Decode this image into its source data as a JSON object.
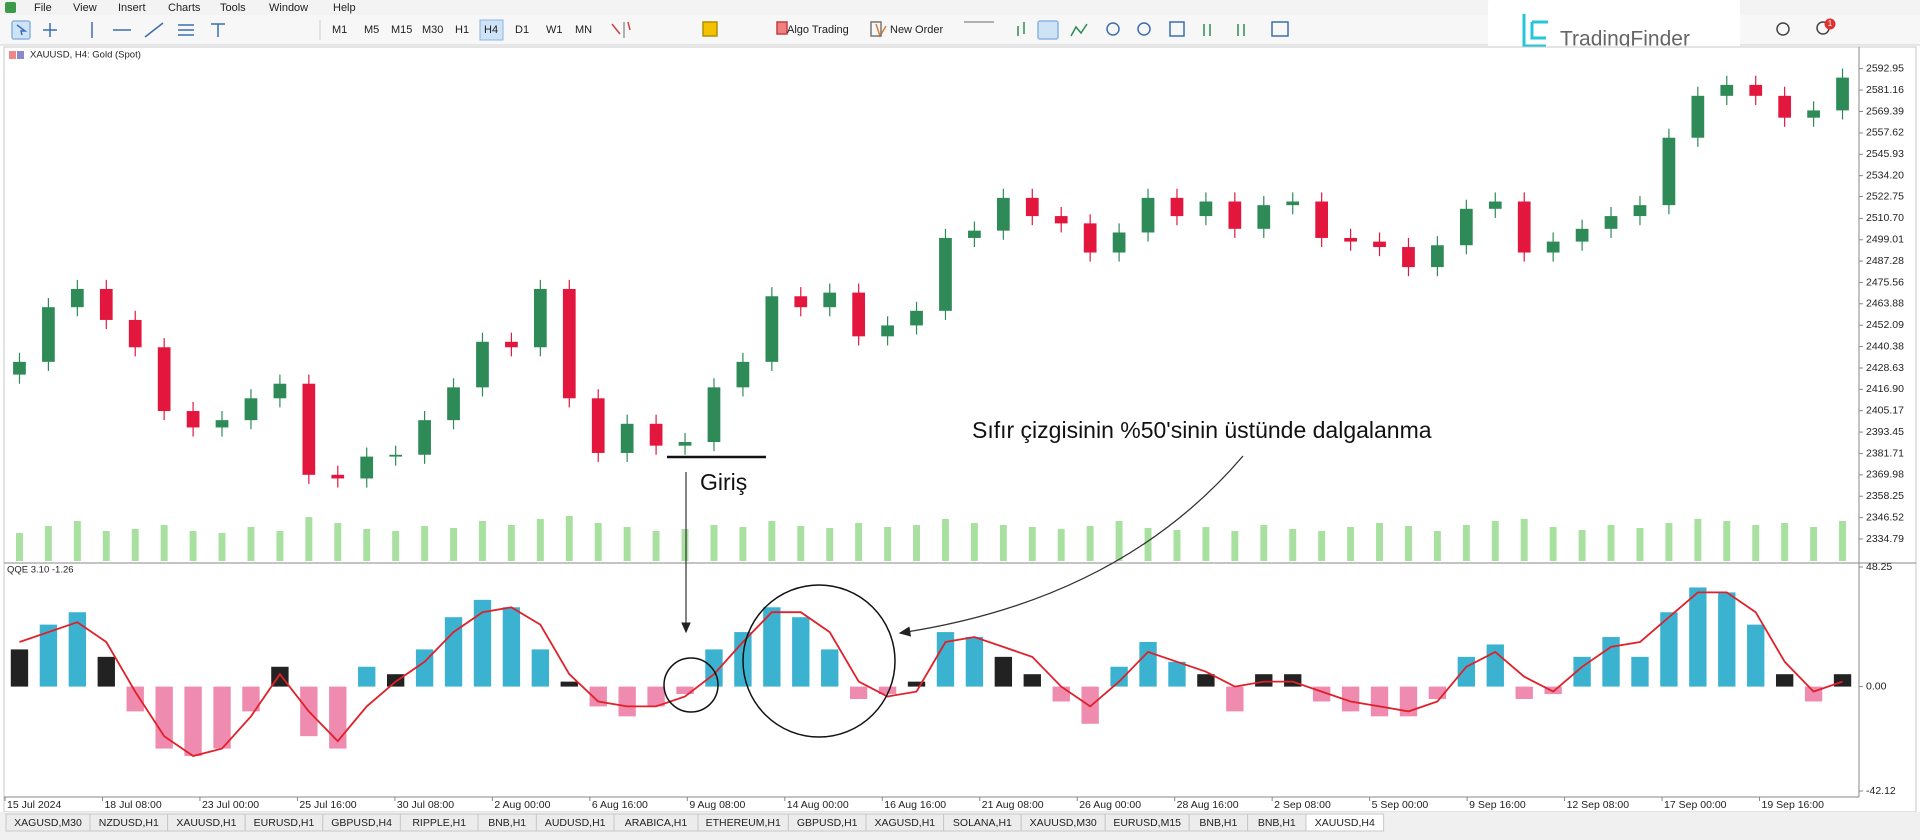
{
  "menu": [
    "File",
    "View",
    "Insert",
    "Charts",
    "Tools",
    "Window",
    "Help"
  ],
  "toolbar": {
    "timeframes": [
      "M1",
      "M5",
      "M15",
      "M30",
      "H1",
      "H4",
      "D1",
      "W1",
      "MN"
    ],
    "algo_trading": "Algo Trading",
    "new_order": "New Order"
  },
  "logo": "TradingFinder",
  "badge": 1,
  "chart_data": {
    "type": "candlestick",
    "title": "XAUUSD, H4: Gold (Spot)",
    "up_color": "#2e8b57",
    "down_color": "#e3173e",
    "open": [
      2425,
      2432,
      2462,
      2472,
      2455,
      2440,
      2405,
      2396,
      2400,
      2412,
      2420,
      2370,
      2368,
      2380,
      2381,
      2400,
      2418,
      2443,
      2440,
      2472,
      2412,
      2382,
      2398,
      2386,
      2388,
      2418,
      2432,
      2468,
      2462,
      2470,
      2446,
      2452,
      2460,
      2500,
      2504,
      2522,
      2512,
      2508,
      2492,
      2503,
      2522,
      2512,
      2520,
      2505,
      2518,
      2520,
      2500,
      2498,
      2495,
      2484,
      2496,
      2516,
      2520,
      2492,
      2498,
      2505,
      2512,
      2518,
      2555,
      2578,
      2584,
      2578,
      2566,
      2570
    ],
    "high": [
      2437,
      2467,
      2477,
      2477,
      2460,
      2445,
      2410,
      2405,
      2417,
      2425,
      2425,
      2375,
      2385,
      2386,
      2405,
      2423,
      2448,
      2448,
      2477,
      2477,
      2417,
      2403,
      2403,
      2393,
      2423,
      2437,
      2473,
      2473,
      2475,
      2475,
      2457,
      2465,
      2505,
      2509,
      2527,
      2527,
      2517,
      2513,
      2508,
      2527,
      2527,
      2525,
      2525,
      2523,
      2525,
      2525,
      2505,
      2503,
      2500,
      2501,
      2521,
      2525,
      2525,
      2503,
      2510,
      2517,
      2523,
      2560,
      2583,
      2589,
      2589,
      2583,
      2575,
      2593
    ],
    "low": [
      2420,
      2427,
      2457,
      2450,
      2435,
      2400,
      2391,
      2391,
      2395,
      2407,
      2365,
      2363,
      2363,
      2375,
      2376,
      2395,
      2413,
      2435,
      2435,
      2407,
      2377,
      2377,
      2381,
      2381,
      2383,
      2413,
      2427,
      2457,
      2457,
      2441,
      2441,
      2447,
      2455,
      2495,
      2499,
      2507,
      2503,
      2487,
      2487,
      2498,
      2507,
      2507,
      2500,
      2500,
      2513,
      2495,
      2493,
      2490,
      2479,
      2479,
      2491,
      2511,
      2487,
      2487,
      2493,
      2500,
      2507,
      2513,
      2550,
      2573,
      2573,
      2561,
      2561,
      2565
    ],
    "close": [
      2432,
      2462,
      2472,
      2455,
      2440,
      2405,
      2396,
      2400,
      2412,
      2420,
      2370,
      2368,
      2380,
      2381,
      2400,
      2418,
      2443,
      2440,
      2472,
      2412,
      2382,
      2398,
      2386,
      2388,
      2418,
      2432,
      2468,
      2462,
      2470,
      2446,
      2452,
      2460,
      2500,
      2504,
      2522,
      2512,
      2508,
      2492,
      2503,
      2522,
      2512,
      2520,
      2505,
      2518,
      2520,
      2500,
      2498,
      2495,
      2484,
      2496,
      2516,
      2520,
      2492,
      2498,
      2505,
      2512,
      2518,
      2555,
      2578,
      2584,
      2578,
      2566,
      2570,
      2588
    ],
    "ylim": [
      2322.7,
      2603.7
    ],
    "yticks": [
      2592.95,
      2581.16,
      2569.39,
      2557.62,
      2545.93,
      {
        "value": 2534.2,
        "label": "2534.20"
      },
      2522.75,
      {
        "value": 2510.7,
        "label": "2510.70"
      },
      2499.01,
      2487.28,
      2475.56,
      2463.88,
      2452.09,
      2440.38,
      2428.63,
      {
        "value": 2416.9,
        "label": "2416.90"
      },
      2405.17,
      2393.45,
      2381.71,
      2369.98,
      2358.25,
      2346.52,
      2334.79
    ],
    "xtick_labels": [
      "15 Jul 2024",
      "18 Jul 08:00",
      "23 Jul 00:00",
      "25 Jul 16:00",
      "30 Jul 08:00",
      "2 Aug 00:00",
      "6 Aug 16:00",
      "9 Aug 08:00",
      "14 Aug 00:00",
      "16 Aug 16:00",
      "21 Aug 08:00",
      "26 Aug 00:00",
      "28 Aug 16:00",
      "2 Sep 08:00",
      "5 Sep 00:00",
      "9 Sep 16:00",
      "12 Sep 08:00",
      "17 Sep 00:00",
      "19 Sep 16:00"
    ],
    "volume": {
      "color": "#a8e0a0",
      "values": [
        28,
        35,
        40,
        30,
        32,
        36,
        30,
        28,
        34,
        30,
        44,
        38,
        32,
        30,
        35,
        33,
        40,
        36,
        42,
        45,
        38,
        34,
        30,
        32,
        36,
        34,
        40,
        35,
        33,
        38,
        34,
        36,
        42,
        38,
        36,
        34,
        32,
        35,
        40,
        33,
        31,
        34,
        30,
        36,
        32,
        30,
        34,
        38,
        35,
        30,
        36,
        40,
        42,
        34,
        31,
        36,
        33,
        38,
        42,
        40,
        36,
        38,
        34,
        40
      ]
    },
    "indicator": {
      "title": "QQE 3.10 -1.26",
      "ylim": [
        -42.12,
        48.25
      ],
      "yticks": [
        48.25,
        {
          "value": 0,
          "label": "0.00"
        },
        -42.12
      ],
      "histogram": {
        "values": [
          15,
          25,
          30,
          12,
          -10,
          -25,
          -28,
          -25,
          -10,
          8,
          -20,
          -25,
          8,
          5,
          15,
          28,
          35,
          32,
          15,
          2,
          -8,
          -12,
          -8,
          -3,
          15,
          22,
          32,
          28,
          15,
          -5,
          -3,
          2,
          22,
          20,
          12,
          5,
          -6,
          -15,
          8,
          18,
          10,
          5,
          -10,
          5,
          5,
          -6,
          -10,
          -12,
          -12,
          -5,
          12,
          17,
          -5,
          -3,
          12,
          20,
          12,
          30,
          40,
          38,
          25,
          5,
          -6,
          5
        ],
        "colors": [
          "#222222",
          "#3bb3d0",
          "#3bb3d0",
          "#222222",
          "#f08bb0",
          "#f08bb0",
          "#f08bb0",
          "#f08bb0",
          "#f08bb0",
          "#222222",
          "#f08bb0",
          "#f08bb0",
          "#3bb3d0",
          "#222222",
          "#3bb3d0",
          "#3bb3d0",
          "#3bb3d0",
          "#3bb3d0",
          "#3bb3d0",
          "#222222",
          "#f08bb0",
          "#f08bb0",
          "#f08bb0",
          "#f08bb0",
          "#3bb3d0",
          "#3bb3d0",
          "#3bb3d0",
          "#3bb3d0",
          "#3bb3d0",
          "#f08bb0",
          "#f08bb0",
          "#222222",
          "#3bb3d0",
          "#3bb3d0",
          "#222222",
          "#222222",
          "#f08bb0",
          "#f08bb0",
          "#3bb3d0",
          "#3bb3d0",
          "#3bb3d0",
          "#222222",
          "#f08bb0",
          "#222222",
          "#222222",
          "#f08bb0",
          "#f08bb0",
          "#f08bb0",
          "#f08bb0",
          "#f08bb0",
          "#3bb3d0",
          "#3bb3d0",
          "#f08bb0",
          "#f08bb0",
          "#3bb3d0",
          "#3bb3d0",
          "#3bb3d0",
          "#3bb3d0",
          "#3bb3d0",
          "#3bb3d0",
          "#3bb3d0",
          "#222222",
          "#f08bb0",
          "#222222"
        ]
      },
      "line": {
        "color": "#e0202a",
        "values": [
          18,
          22,
          26,
          18,
          -2,
          -20,
          -28,
          -25,
          -12,
          5,
          -10,
          -22,
          -8,
          2,
          10,
          22,
          30,
          32,
          25,
          5,
          -6,
          -8,
          -8,
          -4,
          5,
          18,
          30,
          30,
          22,
          2,
          -4,
          -2,
          18,
          20,
          16,
          12,
          0,
          -8,
          2,
          14,
          10,
          6,
          0,
          2,
          2,
          -2,
          -6,
          -8,
          -10,
          -6,
          8,
          14,
          4,
          -2,
          8,
          16,
          18,
          28,
          38,
          38,
          30,
          10,
          -2,
          2
        ]
      }
    }
  },
  "annotations": {
    "wave": "Sıfır çizgisinin %50'sinin üstünde dalgalanma",
    "entry": "Giriş"
  },
  "tabs": [
    "XAGUSD,M30",
    "NZDUSD,H1",
    "XAUUSD,H1",
    "EURUSD,H1",
    "GBPUSD,H4",
    "RIPPLE,H1",
    "BNB,H1",
    "AUDUSD,H1",
    "ARABICA,H1",
    "ETHEREUM,H1",
    "GBPUSD,H1",
    "XAGUSD,H1",
    "SOLANA,H1",
    "XAUUSD,M30",
    "EURUSD,M15",
    "BNB,H1",
    "BNB,H1",
    "XAUUSD,H4"
  ]
}
